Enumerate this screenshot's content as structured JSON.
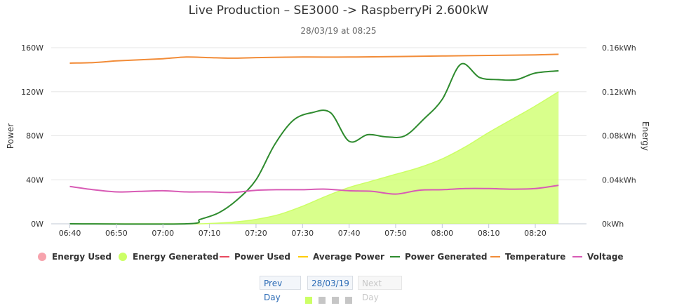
{
  "header": {
    "title": "Live Production – SE3000 -> RaspberryPi 2.600kW",
    "subtitle": "28/03/19 at 08:25"
  },
  "navigation": {
    "prev_label": "Prev Day",
    "date_label": "28/03/19",
    "next_label": "Next Day"
  },
  "pager": {
    "count": 4,
    "active_index": 0
  },
  "chart_data": {
    "type": "line",
    "x_unit": "time",
    "x_ticks": [
      "06:40",
      "06:50",
      "07:00",
      "07:10",
      "07:20",
      "07:30",
      "07:40",
      "07:50",
      "08:00",
      "08:10",
      "08:20"
    ],
    "x_range": [
      "06:36",
      "08:31"
    ],
    "y_left": {
      "title": "Power",
      "range": [
        0,
        160
      ],
      "ticks": [
        "0W",
        "40W",
        "80W",
        "120W",
        "160W"
      ]
    },
    "y_right": {
      "title": "Energy",
      "range": [
        0,
        0.16
      ],
      "ticks": [
        "0kWh",
        "0.04kWh",
        "0.08kWh",
        "0.12kWh",
        "0.16kWh"
      ]
    },
    "grid": true,
    "legend_position": "bottom",
    "legend": [
      {
        "name": "Energy Used",
        "symbol": "circle",
        "color": "#f7a3ad"
      },
      {
        "name": "Energy Generated",
        "symbol": "circle",
        "color": "#ccff66"
      },
      {
        "name": "Power Used",
        "symbol": "line",
        "color": "#e84a5f"
      },
      {
        "name": "Average Power",
        "symbol": "line",
        "color": "#ffcc00"
      },
      {
        "name": "Power Generated",
        "symbol": "line",
        "color": "#2e8b2e"
      },
      {
        "name": "Temperature",
        "symbol": "line",
        "color": "#f28c38"
      },
      {
        "name": "Voltage",
        "symbol": "line",
        "color": "#d85bb5"
      }
    ],
    "series": [
      {
        "name": "Energy Generated",
        "type": "area",
        "axis": "right",
        "color": "#ccff66",
        "points": [
          [
            "06:40",
            0
          ],
          [
            "07:05",
            0
          ],
          [
            "07:10",
            0.0003
          ],
          [
            "07:15",
            0.0015
          ],
          [
            "07:20",
            0.004
          ],
          [
            "07:25",
            0.0085
          ],
          [
            "07:30",
            0.016
          ],
          [
            "07:35",
            0.025
          ],
          [
            "07:40",
            0.033
          ],
          [
            "07:45",
            0.039
          ],
          [
            "07:50",
            0.045
          ],
          [
            "07:55",
            0.051
          ],
          [
            "08:00",
            0.059
          ],
          [
            "08:05",
            0.07
          ],
          [
            "08:10",
            0.083
          ],
          [
            "08:15",
            0.095
          ],
          [
            "08:20",
            0.107
          ],
          [
            "08:25",
            0.12
          ]
        ]
      },
      {
        "name": "Power Generated",
        "type": "line",
        "axis": "left",
        "color": "#2e8b2e",
        "points": [
          [
            "06:40",
            0
          ],
          [
            "07:05",
            0
          ],
          [
            "07:08",
            4
          ],
          [
            "07:12",
            10
          ],
          [
            "07:16",
            22
          ],
          [
            "07:20",
            40
          ],
          [
            "07:24",
            72
          ],
          [
            "07:28",
            94
          ],
          [
            "07:32",
            101
          ],
          [
            "07:36",
            101
          ],
          [
            "07:40",
            75
          ],
          [
            "07:44",
            81
          ],
          [
            "07:48",
            79
          ],
          [
            "07:52",
            80
          ],
          [
            "07:56",
            95
          ],
          [
            "08:00",
            113
          ],
          [
            "08:04",
            145
          ],
          [
            "08:08",
            133
          ],
          [
            "08:12",
            131
          ],
          [
            "08:16",
            131
          ],
          [
            "08:20",
            137
          ],
          [
            "08:25",
            139
          ]
        ]
      },
      {
        "name": "Temperature",
        "type": "line",
        "axis": "left",
        "color": "#f28c38",
        "points": [
          [
            "06:40",
            146
          ],
          [
            "06:45",
            146.5
          ],
          [
            "06:50",
            148
          ],
          [
            "06:55",
            149
          ],
          [
            "07:00",
            150
          ],
          [
            "07:05",
            151.5
          ],
          [
            "07:10",
            151
          ],
          [
            "07:15",
            150.5
          ],
          [
            "07:20",
            151
          ],
          [
            "07:30",
            151.5
          ],
          [
            "07:40",
            151.5
          ],
          [
            "07:50",
            152
          ],
          [
            "08:00",
            152.5
          ],
          [
            "08:10",
            153
          ],
          [
            "08:20",
            153.5
          ],
          [
            "08:25",
            154
          ]
        ]
      },
      {
        "name": "Voltage",
        "type": "line",
        "axis": "left",
        "color": "#d85bb5",
        "points": [
          [
            "06:40",
            34
          ],
          [
            "06:45",
            31
          ],
          [
            "06:50",
            29
          ],
          [
            "06:55",
            29.5
          ],
          [
            "07:00",
            30
          ],
          [
            "07:05",
            29
          ],
          [
            "07:10",
            29
          ],
          [
            "07:15",
            28.5
          ],
          [
            "07:20",
            30.5
          ],
          [
            "07:25",
            31
          ],
          [
            "07:30",
            31
          ],
          [
            "07:35",
            31.5
          ],
          [
            "07:40",
            30
          ],
          [
            "07:45",
            29.5
          ],
          [
            "07:50",
            27
          ],
          [
            "07:55",
            30.5
          ],
          [
            "08:00",
            31
          ],
          [
            "08:05",
            32
          ],
          [
            "08:10",
            32
          ],
          [
            "08:15",
            31.5
          ],
          [
            "08:20",
            32
          ],
          [
            "08:25",
            35
          ]
        ]
      }
    ]
  }
}
